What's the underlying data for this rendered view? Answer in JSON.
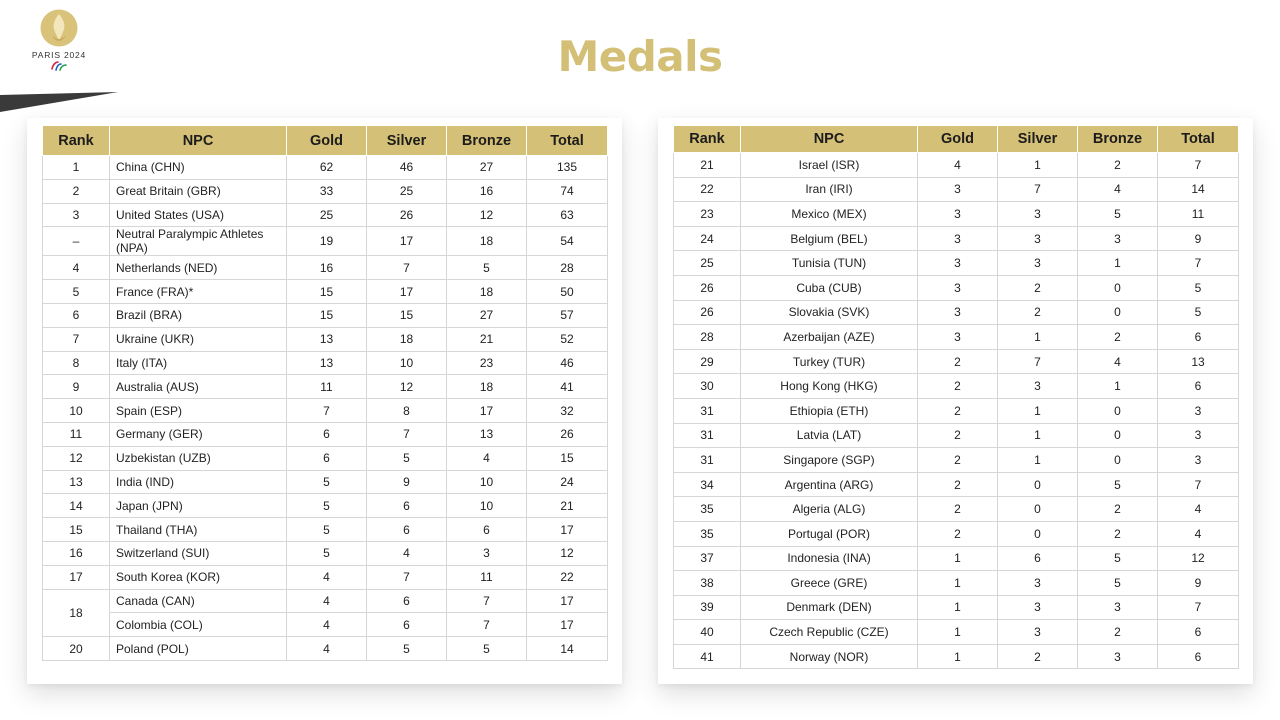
{
  "logo": {
    "text": "PARIS 2024"
  },
  "title": "Medals",
  "columns": [
    "Rank",
    "NPC",
    "Gold",
    "Silver",
    "Bronze",
    "Total"
  ],
  "left_rows": [
    {
      "rank": "1",
      "npc": "China (CHN)",
      "gold": "62",
      "silver": "46",
      "bronze": "27",
      "total": "135"
    },
    {
      "rank": "2",
      "npc": "Great Britain (GBR)",
      "gold": "33",
      "silver": "25",
      "bronze": "16",
      "total": "74"
    },
    {
      "rank": "3",
      "npc": "United States (USA)",
      "gold": "25",
      "silver": "26",
      "bronze": "12",
      "total": "63"
    },
    {
      "rank": "–",
      "npc": "Neutral Paralympic Athletes (NPA)",
      "gold": "19",
      "silver": "17",
      "bronze": "18",
      "total": "54",
      "wrap": true
    },
    {
      "rank": "4",
      "npc": "Netherlands (NED)",
      "gold": "16",
      "silver": "7",
      "bronze": "5",
      "total": "28"
    },
    {
      "rank": "5",
      "npc": "France (FRA)*",
      "gold": "15",
      "silver": "17",
      "bronze": "18",
      "total": "50"
    },
    {
      "rank": "6",
      "npc": "Brazil (BRA)",
      "gold": "15",
      "silver": "15",
      "bronze": "27",
      "total": "57"
    },
    {
      "rank": "7",
      "npc": "Ukraine (UKR)",
      "gold": "13",
      "silver": "18",
      "bronze": "21",
      "total": "52"
    },
    {
      "rank": "8",
      "npc": "Italy (ITA)",
      "gold": "13",
      "silver": "10",
      "bronze": "23",
      "total": "46"
    },
    {
      "rank": "9",
      "npc": "Australia (AUS)",
      "gold": "11",
      "silver": "12",
      "bronze": "18",
      "total": "41"
    },
    {
      "rank": "10",
      "npc": "Spain (ESP)",
      "gold": "7",
      "silver": "8",
      "bronze": "17",
      "total": "32"
    },
    {
      "rank": "11",
      "npc": "Germany (GER)",
      "gold": "6",
      "silver": "7",
      "bronze": "13",
      "total": "26"
    },
    {
      "rank": "12",
      "npc": "Uzbekistan (UZB)",
      "gold": "6",
      "silver": "5",
      "bronze": "4",
      "total": "15"
    },
    {
      "rank": "13",
      "npc": "India (IND)",
      "gold": "5",
      "silver": "9",
      "bronze": "10",
      "total": "24"
    },
    {
      "rank": "14",
      "npc": "Japan (JPN)",
      "gold": "5",
      "silver": "6",
      "bronze": "10",
      "total": "21"
    },
    {
      "rank": "15",
      "npc": "Thailand (THA)",
      "gold": "5",
      "silver": "6",
      "bronze": "6",
      "total": "17"
    },
    {
      "rank": "16",
      "npc": "Switzerland (SUI)",
      "gold": "5",
      "silver": "4",
      "bronze": "3",
      "total": "12"
    },
    {
      "rank": "17",
      "npc": "South Korea (KOR)",
      "gold": "4",
      "silver": "7",
      "bronze": "11",
      "total": "22"
    },
    {
      "rank": "18",
      "npc": "Canada (CAN)",
      "gold": "4",
      "silver": "6",
      "bronze": "7",
      "total": "17",
      "rankspan": 2
    },
    {
      "rank": "",
      "npc": "Colombia (COL)",
      "gold": "4",
      "silver": "6",
      "bronze": "7",
      "total": "17",
      "spanned": true
    },
    {
      "rank": "20",
      "npc": "Poland (POL)",
      "gold": "4",
      "silver": "5",
      "bronze": "5",
      "total": "14"
    }
  ],
  "right_rows": [
    {
      "rank": "21",
      "npc": "Israel (ISR)",
      "gold": "4",
      "silver": "1",
      "bronze": "2",
      "total": "7"
    },
    {
      "rank": "22",
      "npc": "Iran (IRI)",
      "gold": "3",
      "silver": "7",
      "bronze": "4",
      "total": "14"
    },
    {
      "rank": "23",
      "npc": "Mexico (MEX)",
      "gold": "3",
      "silver": "3",
      "bronze": "5",
      "total": "11"
    },
    {
      "rank": "24",
      "npc": "Belgium (BEL)",
      "gold": "3",
      "silver": "3",
      "bronze": "3",
      "total": "9"
    },
    {
      "rank": "25",
      "npc": "Tunisia (TUN)",
      "gold": "3",
      "silver": "3",
      "bronze": "1",
      "total": "7"
    },
    {
      "rank": "26",
      "npc": "Cuba (CUB)",
      "gold": "3",
      "silver": "2",
      "bronze": "0",
      "total": "5"
    },
    {
      "rank": "26",
      "npc": "Slovakia (SVK)",
      "gold": "3",
      "silver": "2",
      "bronze": "0",
      "total": "5"
    },
    {
      "rank": "28",
      "npc": "Azerbaijan (AZE)",
      "gold": "3",
      "silver": "1",
      "bronze": "2",
      "total": "6"
    },
    {
      "rank": "29",
      "npc": "Turkey (TUR)",
      "gold": "2",
      "silver": "7",
      "bronze": "4",
      "total": "13"
    },
    {
      "rank": "30",
      "npc": "Hong Kong (HKG)",
      "gold": "2",
      "silver": "3",
      "bronze": "1",
      "total": "6"
    },
    {
      "rank": "31",
      "npc": "Ethiopia (ETH)",
      "gold": "2",
      "silver": "1",
      "bronze": "0",
      "total": "3"
    },
    {
      "rank": "31",
      "npc": "Latvia (LAT)",
      "gold": "2",
      "silver": "1",
      "bronze": "0",
      "total": "3"
    },
    {
      "rank": "31",
      "npc": "Singapore (SGP)",
      "gold": "2",
      "silver": "1",
      "bronze": "0",
      "total": "3"
    },
    {
      "rank": "34",
      "npc": "Argentina (ARG)",
      "gold": "2",
      "silver": "0",
      "bronze": "5",
      "total": "7"
    },
    {
      "rank": "35",
      "npc": "Algeria (ALG)",
      "gold": "2",
      "silver": "0",
      "bronze": "2",
      "total": "4"
    },
    {
      "rank": "35",
      "npc": "Portugal (POR)",
      "gold": "2",
      "silver": "0",
      "bronze": "2",
      "total": "4"
    },
    {
      "rank": "37",
      "npc": "Indonesia (INA)",
      "gold": "1",
      "silver": "6",
      "bronze": "5",
      "total": "12"
    },
    {
      "rank": "38",
      "npc": "Greece (GRE)",
      "gold": "1",
      "silver": "3",
      "bronze": "5",
      "total": "9"
    },
    {
      "rank": "39",
      "npc": "Denmark (DEN)",
      "gold": "1",
      "silver": "3",
      "bronze": "3",
      "total": "7"
    },
    {
      "rank": "40",
      "npc": "Czech Republic (CZE)",
      "gold": "1",
      "silver": "3",
      "bronze": "2",
      "total": "6"
    },
    {
      "rank": "41",
      "npc": "Norway (NOR)",
      "gold": "1",
      "silver": "2",
      "bronze": "3",
      "total": "6"
    }
  ],
  "colors": {
    "accent": "#d5c077",
    "title": "#d4bf76",
    "grid": "#d6d6d6",
    "wedge": "#3a3a3a"
  }
}
